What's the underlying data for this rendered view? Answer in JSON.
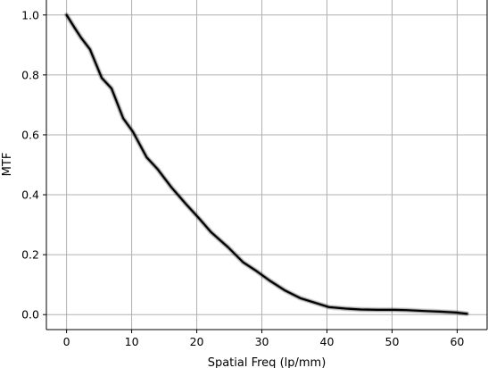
{
  "chart_data": {
    "type": "line",
    "title": "",
    "xlabel": "Spatial Freq (lp/mm)",
    "ylabel": "MTF",
    "xlim": [
      -3.1,
      64.6
    ],
    "ylim": [
      -0.05,
      1.05
    ],
    "xticks": [
      0,
      10,
      20,
      30,
      40,
      50,
      60
    ],
    "xtick_labels": [
      "0",
      "10",
      "20",
      "30",
      "40",
      "50",
      "60"
    ],
    "yticks": [
      0.0,
      0.2,
      0.4,
      0.6,
      0.8,
      1.0
    ],
    "ytick_labels": [
      "0.0",
      "0.2",
      "0.4",
      "0.6",
      "0.8",
      "1.0"
    ],
    "grid": true,
    "legend": "none",
    "line_color": "#000000",
    "grid_color": "#b0b0b0",
    "series": [
      {
        "x": [
          0,
          1.3,
          2.2,
          3.6,
          5.4,
          6.9,
          8.7,
          10.2,
          12.3,
          14.0,
          16.1,
          18.3,
          20.4,
          22.2,
          24.8,
          27.1,
          29.2,
          31.1,
          33.6,
          35.9,
          38.1,
          40.3,
          42.9,
          45.2,
          47.8,
          50.3,
          52.2,
          55.0,
          57.3,
          59.8,
          61.5
        ],
        "y": [
          1.0,
          0.955,
          0.925,
          0.885,
          0.79,
          0.755,
          0.655,
          0.61,
          0.525,
          0.485,
          0.425,
          0.37,
          0.32,
          0.275,
          0.225,
          0.175,
          0.145,
          0.115,
          0.08,
          0.055,
          0.04,
          0.025,
          0.02,
          0.017,
          0.016,
          0.016,
          0.015,
          0.012,
          0.01,
          0.007,
          0.003
        ]
      }
    ]
  }
}
